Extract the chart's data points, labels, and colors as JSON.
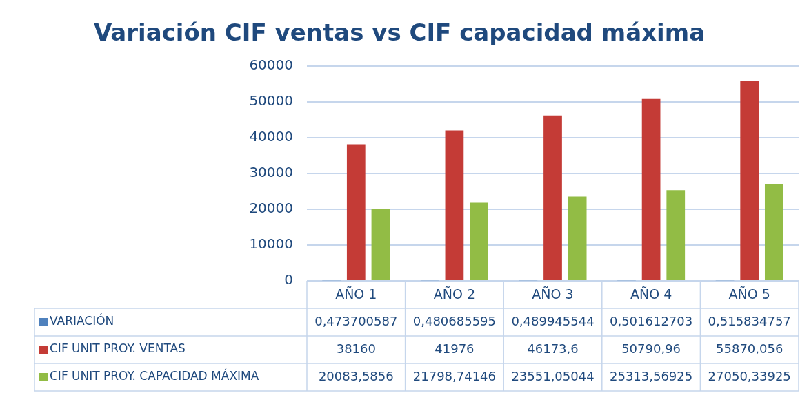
{
  "chart_data": {
    "type": "bar",
    "title": "Variación CIF ventas vs CIF capacidad máxima",
    "categories": [
      "AÑO 1",
      "AÑO 2",
      "AÑO 3",
      "AÑO 4",
      "AÑO 5"
    ],
    "series": [
      {
        "name": "VARIACIÓN",
        "color": "#4f81bd",
        "values": [
          0.473700587,
          0.480685595,
          0.489945544,
          0.501612703,
          0.515834757
        ],
        "value_labels": [
          "0,473700587",
          "0,480685595",
          "0,489945544",
          "0,501612703",
          "0,515834757"
        ]
      },
      {
        "name": "CIF UNIT PROY. VENTAS",
        "color": "#c43b36",
        "values": [
          38160,
          41976,
          46173.6,
          50790.96,
          55870.056
        ],
        "value_labels": [
          "38160",
          "41976",
          "46173,6",
          "50790,96",
          "55870,056"
        ]
      },
      {
        "name": "CIF UNIT PROY. CAPACIDAD MÁXIMA",
        "color": "#92bc45",
        "values": [
          20083.5856,
          21798.74146,
          23551.05044,
          25313.56925,
          27050.33925
        ],
        "value_labels": [
          "20083,5856",
          "21798,74146",
          "23551,05044",
          "25313,56925",
          "27050,33925"
        ]
      }
    ],
    "ylim": [
      0,
      60000
    ],
    "yticks": [
      0,
      10000,
      20000,
      30000,
      40000,
      50000,
      60000
    ],
    "grid": "y",
    "legend": "bottom"
  }
}
